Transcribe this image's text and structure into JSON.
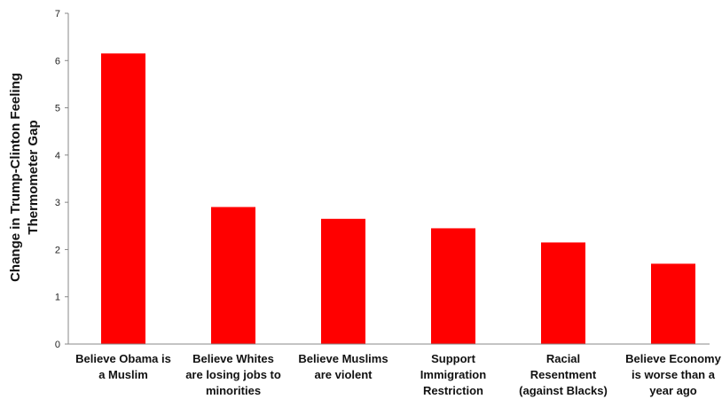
{
  "chart_data": {
    "type": "bar",
    "title": "",
    "xlabel": "",
    "ylabel_lines": [
      "Change in Trump-Clinton Feeling",
      "Thermometer Gap"
    ],
    "ylim": [
      0,
      7
    ],
    "yticks": [
      0,
      1,
      2,
      3,
      4,
      5,
      6,
      7
    ],
    "categories": [
      [
        "Believe Obama is",
        "a Muslim"
      ],
      [
        "Believe Whites",
        "are losing jobs to",
        "minorities"
      ],
      [
        "Believe Muslims",
        "are violent"
      ],
      [
        "Support",
        "Immigration",
        "Restriction"
      ],
      [
        "Racial",
        "Resentment",
        "(against Blacks)"
      ],
      [
        "Believe Economy",
        "is worse than a",
        "year ago"
      ]
    ],
    "values": [
      6.15,
      2.9,
      2.65,
      2.45,
      2.15,
      1.7
    ],
    "bar_color": "#ff0000",
    "grid": false,
    "legend": "none"
  }
}
